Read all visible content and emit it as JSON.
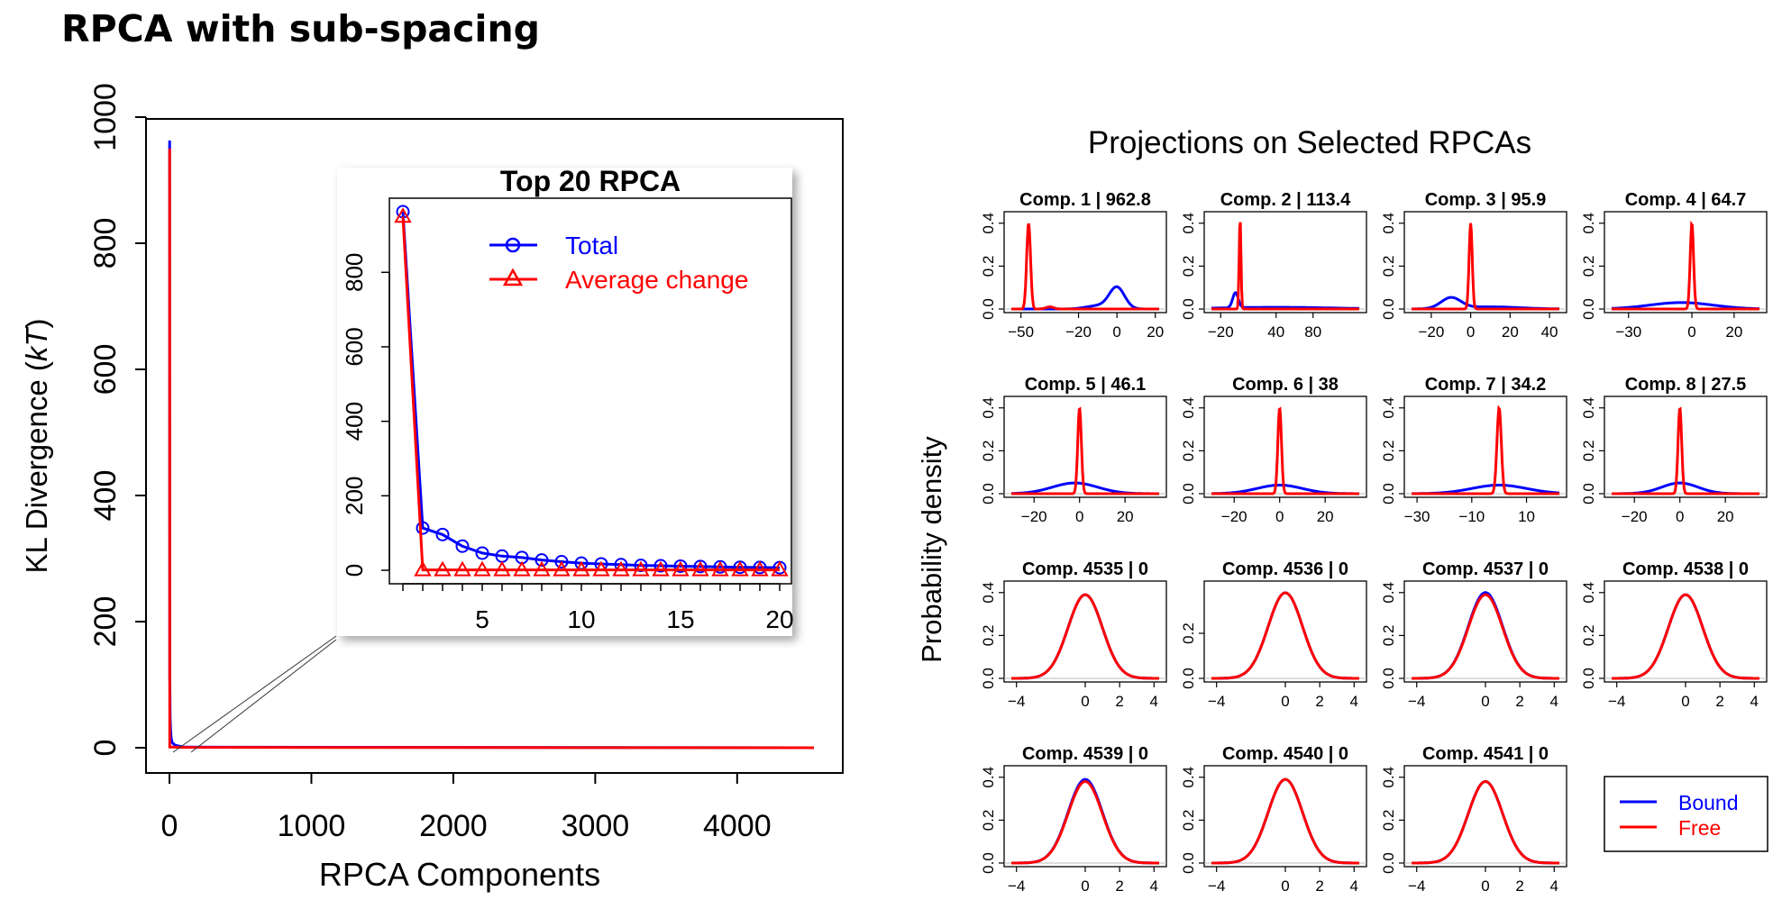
{
  "figure_title": "RPCA with sub-spacing",
  "colors": {
    "bound": "#0000ff",
    "free": "#ff0000",
    "axis": "#000000"
  },
  "chart_data": [
    {
      "type": "line",
      "title": "",
      "xlabel": "RPCA Components",
      "ylabel_main": "KL Divergence (",
      "ylabel_italic": "kT",
      "ylabel_close": ")",
      "xlim": [
        0,
        4541
      ],
      "ylim": [
        0,
        1000
      ],
      "xticks": [
        0,
        1000,
        2000,
        3000,
        4000
      ],
      "yticks": [
        0,
        200,
        400,
        600,
        800,
        1000
      ],
      "series": [
        {
          "x": [
            1,
            2,
            3,
            5,
            8,
            12,
            20,
            40,
            100,
            4541
          ],
          "values": [
            962.8,
            113.4,
            95.9,
            46.1,
            27.5,
            15,
            8,
            4,
            1,
            0
          ]
        },
        {
          "x": [
            1,
            2,
            3,
            5,
            20,
            100,
            4541
          ],
          "values": [
            950,
            1,
            1,
            1,
            1,
            0.5,
            0
          ]
        }
      ]
    },
    {
      "type": "line",
      "title": "Top 20 RPCA",
      "xlim": [
        1,
        20
      ],
      "ylim": [
        0,
        962.8
      ],
      "xticks": [
        5,
        10,
        15,
        20
      ],
      "yticks": [
        0,
        200,
        400,
        600,
        800
      ],
      "legend_position": "top-right",
      "x": [
        1,
        2,
        3,
        4,
        5,
        6,
        7,
        8,
        9,
        10,
        11,
        12,
        13,
        14,
        15,
        16,
        17,
        18,
        19,
        20
      ],
      "series": [
        {
          "name": "Total",
          "values": [
            962.8,
            113.4,
            95.9,
            64.7,
            46.1,
            38,
            34.2,
            27.5,
            23,
            19,
            17,
            15,
            13,
            12,
            11,
            10,
            9,
            8,
            7.5,
            7
          ],
          "marker": "circle"
        },
        {
          "name": "Average change",
          "values": [
            950,
            1,
            1,
            1,
            1,
            1,
            1,
            1,
            1,
            1,
            1,
            1,
            1,
            1,
            1,
            1,
            1,
            1,
            1,
            1
          ],
          "marker": "triangle"
        }
      ]
    },
    {
      "type": "line",
      "title": "Projections on Selected RPCAs",
      "ylabel": "Probability density",
      "legend": [
        "Bound",
        "Free"
      ],
      "legend_position": "bottom-right",
      "panels": [
        {
          "title": "Comp. 1 | 962.8",
          "xlim": [
            -55,
            22
          ],
          "xticks": [
            -50,
            -20,
            0,
            20
          ],
          "ylim": [
            0,
            0.42
          ],
          "yticks": [
            0.0,
            0.2,
            0.4
          ],
          "bound": [
            {
              "mu": 0,
              "sd": 4,
              "peak": 0.1
            },
            {
              "mu": -10,
              "sd": 6,
              "peak": 0.015
            }
          ],
          "free": [
            {
              "mu": -46,
              "sd": 1,
              "peak": 0.4
            },
            {
              "mu": -35,
              "sd": 2,
              "peak": 0.01
            }
          ]
        },
        {
          "title": "Comp. 2 | 113.4",
          "xlim": [
            -30,
            130
          ],
          "xticks": [
            -20,
            40,
            80
          ],
          "ylim": [
            0,
            0.42
          ],
          "yticks": [
            0.0,
            0.2,
            0.4
          ],
          "bound": [
            {
              "mu": -4,
              "sd": 3,
              "peak": 0.07
            },
            {
              "mu": 40,
              "sd": 60,
              "peak": 0.008
            }
          ],
          "free": [
            {
              "mu": 1,
              "sd": 1,
              "peak": 0.42
            }
          ]
        },
        {
          "title": "Comp. 3 | 95.9",
          "xlim": [
            -30,
            45
          ],
          "xticks": [
            -20,
            0,
            20,
            40
          ],
          "ylim": [
            0,
            0.42
          ],
          "yticks": [
            0.0,
            0.2,
            0.4
          ],
          "bound": [
            {
              "mu": -10,
              "sd": 5,
              "peak": 0.05
            },
            {
              "mu": 10,
              "sd": 15,
              "peak": 0.01
            }
          ],
          "free": [
            {
              "mu": 0,
              "sd": 0.8,
              "peak": 0.4
            }
          ]
        },
        {
          "title": "Comp. 4 | 64.7",
          "xlim": [
            -38,
            32
          ],
          "xticks": [
            -30,
            0,
            20
          ],
          "ylim": [
            0,
            0.42
          ],
          "yticks": [
            0.0,
            0.2,
            0.4
          ],
          "bound": [
            {
              "mu": -5,
              "sd": 15,
              "peak": 0.03
            }
          ],
          "free": [
            {
              "mu": 0,
              "sd": 0.8,
              "peak": 0.4
            }
          ]
        },
        {
          "title": "Comp. 5 | 46.1",
          "xlim": [
            -30,
            35
          ],
          "xticks": [
            -20,
            0,
            20
          ],
          "ylim": [
            0,
            0.42
          ],
          "yticks": [
            0.0,
            0.2,
            0.4
          ],
          "bound": [
            {
              "mu": -2,
              "sd": 10,
              "peak": 0.05
            }
          ],
          "free": [
            {
              "mu": 0,
              "sd": 0.8,
              "peak": 0.4
            }
          ]
        },
        {
          "title": "Comp. 6 | 38",
          "xlim": [
            -30,
            35
          ],
          "xticks": [
            -20,
            0,
            20
          ],
          "ylim": [
            0,
            0.42
          ],
          "yticks": [
            0.0,
            0.2,
            0.4
          ],
          "bound": [
            {
              "mu": 0,
              "sd": 10,
              "peak": 0.04
            }
          ],
          "free": [
            {
              "mu": 0,
              "sd": 0.8,
              "peak": 0.4
            }
          ]
        },
        {
          "title": "Comp. 7 | 34.2",
          "xlim": [
            -32,
            22
          ],
          "xticks": [
            -30,
            -10,
            10
          ],
          "ylim": [
            0,
            0.42
          ],
          "yticks": [
            0.0,
            0.2,
            0.4
          ],
          "bound": [
            {
              "mu": 0,
              "sd": 10,
              "peak": 0.04
            }
          ],
          "free": [
            {
              "mu": 0,
              "sd": 0.8,
              "peak": 0.4
            }
          ]
        },
        {
          "title": "Comp. 8 | 27.5",
          "xlim": [
            -30,
            35
          ],
          "xticks": [
            -20,
            0,
            20
          ],
          "ylim": [
            0,
            0.42
          ],
          "yticks": [
            0.0,
            0.2,
            0.4
          ],
          "bound": [
            {
              "mu": 0,
              "sd": 8,
              "peak": 0.05
            }
          ],
          "free": [
            {
              "mu": 0,
              "sd": 0.8,
              "peak": 0.4
            }
          ]
        },
        {
          "title": "Comp. 4535 | 0",
          "xlim": [
            -4.3,
            4.3
          ],
          "xticks": [
            -4,
            0,
            2,
            4
          ],
          "ylim": [
            0,
            0.42
          ],
          "yticks": [
            0.0,
            0.2,
            0.4
          ],
          "bound": [
            {
              "mu": 0,
              "sd": 1,
              "peak": 0.39
            }
          ],
          "free": [
            {
              "mu": 0,
              "sd": 1,
              "peak": 0.39
            }
          ]
        },
        {
          "title": "Comp. 4536 | 0",
          "xlim": [
            -4.3,
            4.3
          ],
          "xticks": [
            -4,
            0,
            2,
            4
          ],
          "ylim": [
            0,
            0.4
          ],
          "yticks": [
            0.0,
            0.2
          ],
          "bound": [
            {
              "mu": 0,
              "sd": 1,
              "peak": 0.38
            }
          ],
          "free": [
            {
              "mu": 0,
              "sd": 1,
              "peak": 0.38
            }
          ]
        },
        {
          "title": "Comp. 4537 | 0",
          "xlim": [
            -4.3,
            4.3
          ],
          "xticks": [
            -4,
            0,
            2,
            4
          ],
          "ylim": [
            0,
            0.42
          ],
          "yticks": [
            0.0,
            0.2,
            0.4
          ],
          "bound": [
            {
              "mu": 0,
              "sd": 1,
              "peak": 0.4
            }
          ],
          "free": [
            {
              "mu": 0,
              "sd": 1,
              "peak": 0.39
            }
          ]
        },
        {
          "title": "Comp. 4538 | 0",
          "xlim": [
            -4.3,
            4.3
          ],
          "xticks": [
            -4,
            0,
            2,
            4
          ],
          "ylim": [
            0,
            0.42
          ],
          "yticks": [
            0.0,
            0.2,
            0.4
          ],
          "bound": [
            {
              "mu": 0,
              "sd": 1,
              "peak": 0.39
            }
          ],
          "free": [
            {
              "mu": 0,
              "sd": 1,
              "peak": 0.39
            }
          ]
        },
        {
          "title": "Comp. 4539 | 0",
          "xlim": [
            -4.3,
            4.3
          ],
          "xticks": [
            -4,
            0,
            2,
            4
          ],
          "ylim": [
            0,
            0.42
          ],
          "yticks": [
            0.0,
            0.2,
            0.4
          ],
          "bound": [
            {
              "mu": 0,
              "sd": 1,
              "peak": 0.39
            }
          ],
          "free": [
            {
              "mu": 0,
              "sd": 1,
              "peak": 0.38
            }
          ]
        },
        {
          "title": "Comp. 4540 | 0",
          "xlim": [
            -4.3,
            4.3
          ],
          "xticks": [
            -4,
            0,
            2,
            4
          ],
          "ylim": [
            0,
            0.42
          ],
          "yticks": [
            0.0,
            0.2,
            0.4
          ],
          "bound": [
            {
              "mu": 0,
              "sd": 1,
              "peak": 0.39
            }
          ],
          "free": [
            {
              "mu": 0,
              "sd": 1,
              "peak": 0.39
            }
          ]
        },
        {
          "title": "Comp. 4541 | 0",
          "xlim": [
            -4.3,
            4.3
          ],
          "xticks": [
            -4,
            0,
            2,
            4
          ],
          "ylim": [
            0,
            0.42
          ],
          "yticks": [
            0.0,
            0.2,
            0.4
          ],
          "bound": [
            {
              "mu": 0,
              "sd": 1,
              "peak": 0.38
            }
          ],
          "free": [
            {
              "mu": 0,
              "sd": 1,
              "peak": 0.38
            }
          ]
        }
      ]
    }
  ]
}
